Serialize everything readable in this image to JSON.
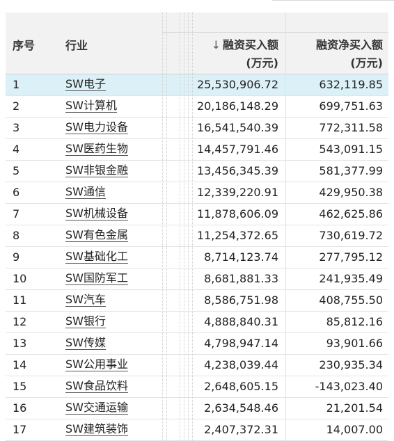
{
  "headers": {
    "index": "序号",
    "industry": "行业",
    "buy_sort_icon": "↓",
    "buy_line1": "融资买入额",
    "buy_line2": "(万元)",
    "net_line1": "融资净买入额",
    "net_line2": "(万元)"
  },
  "selected_row": 0,
  "rows": [
    {
      "idx": "1",
      "industry": "SW电子",
      "buy": "25,530,906.72",
      "net": "632,119.85"
    },
    {
      "idx": "2",
      "industry": "SW计算机",
      "buy": "20,186,148.29",
      "net": "699,751.63"
    },
    {
      "idx": "3",
      "industry": "SW电力设备",
      "buy": "16,541,540.39",
      "net": "772,311.58"
    },
    {
      "idx": "4",
      "industry": "SW医药生物",
      "buy": "14,457,791.46",
      "net": "543,091.15"
    },
    {
      "idx": "5",
      "industry": "SW非银金融",
      "buy": "13,456,345.39",
      "net": "581,377.99"
    },
    {
      "idx": "6",
      "industry": "SW通信",
      "buy": "12,339,220.91",
      "net": "429,950.38"
    },
    {
      "idx": "7",
      "industry": "SW机械设备",
      "buy": "11,878,606.09",
      "net": "462,625.86"
    },
    {
      "idx": "8",
      "industry": "SW有色金属",
      "buy": "11,254,372.65",
      "net": "730,619.72"
    },
    {
      "idx": "9",
      "industry": "SW基础化工",
      "buy": "8,714,123.74",
      "net": "277,795.12"
    },
    {
      "idx": "10",
      "industry": "SW国防军工",
      "buy": "8,681,881.33",
      "net": "241,935.49"
    },
    {
      "idx": "11",
      "industry": "SW汽车",
      "buy": "8,586,751.98",
      "net": "408,755.50"
    },
    {
      "idx": "12",
      "industry": "SW银行",
      "buy": "4,888,840.31",
      "net": "85,812.16"
    },
    {
      "idx": "13",
      "industry": "SW传媒",
      "buy": "4,798,947.14",
      "net": "93,901.66"
    },
    {
      "idx": "14",
      "industry": "SW公用事业",
      "buy": "4,238,039.44",
      "net": "230,935.34"
    },
    {
      "idx": "15",
      "industry": "SW食品饮料",
      "buy": "2,648,605.15",
      "net": "-143,023.40"
    },
    {
      "idx": "16",
      "industry": "SW交通运输",
      "buy": "2,634,548.46",
      "net": "21,201.54"
    },
    {
      "idx": "17",
      "industry": "SW建筑装饰",
      "buy": "2,407,372.31",
      "net": "14,007.00"
    }
  ]
}
